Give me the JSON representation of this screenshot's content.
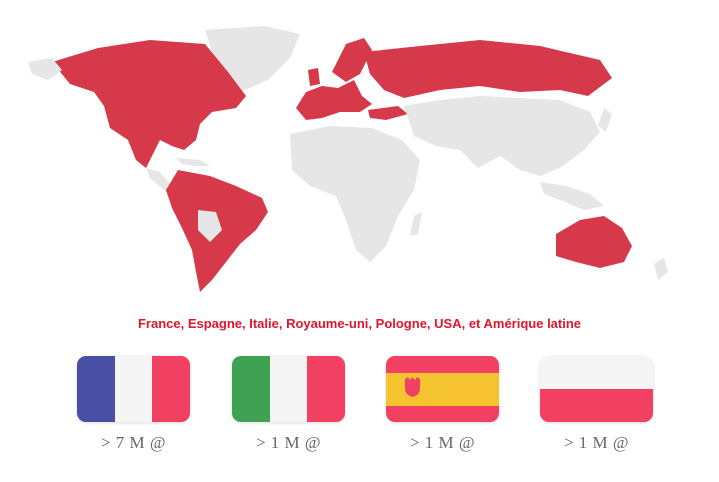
{
  "caption": "France, Espagne, Italie, Royaume-uni, Pologne, USA, et Amérique latine",
  "colors": {
    "highlight": "#d63a4a",
    "land": "#e6e6e6",
    "caption": "#e0162b"
  },
  "flags": [
    {
      "country": "France",
      "label": "> 7 M @",
      "icon": "flag-france-icon"
    },
    {
      "country": "Italie",
      "label": "> 1 M @",
      "icon": "flag-italy-icon"
    },
    {
      "country": "Espagne",
      "label": "> 1 M @",
      "icon": "flag-spain-icon"
    },
    {
      "country": "Pologne",
      "label": "> 1 M @",
      "icon": "flag-poland-icon"
    }
  ]
}
